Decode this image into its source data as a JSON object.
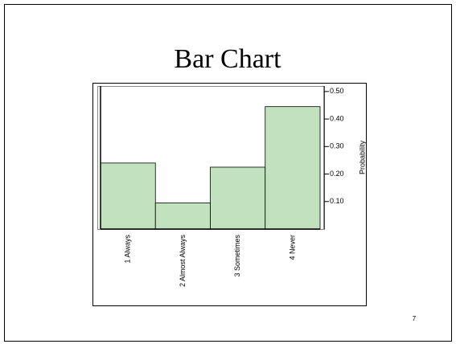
{
  "title": "Bar Chart",
  "page_number": "7",
  "chart_data": {
    "type": "bar",
    "categories": [
      "1 Always",
      "2 Almost Always",
      "3 Sometimes",
      "4 Never"
    ],
    "values": [
      0.24,
      0.095,
      0.225,
      0.445
    ],
    "color": "#c2e1bf",
    "ylabel": "Probability",
    "ylim": [
      0,
      0.52
    ],
    "yticks": [
      {
        "value": 0.1,
        "label": "0.10"
      },
      {
        "value": 0.2,
        "label": "0.20"
      },
      {
        "value": 0.3,
        "label": "0.30"
      },
      {
        "value": 0.4,
        "label": "0.40"
      },
      {
        "value": 0.5,
        "label": "0.50"
      }
    ],
    "y_axis_side": "right"
  }
}
